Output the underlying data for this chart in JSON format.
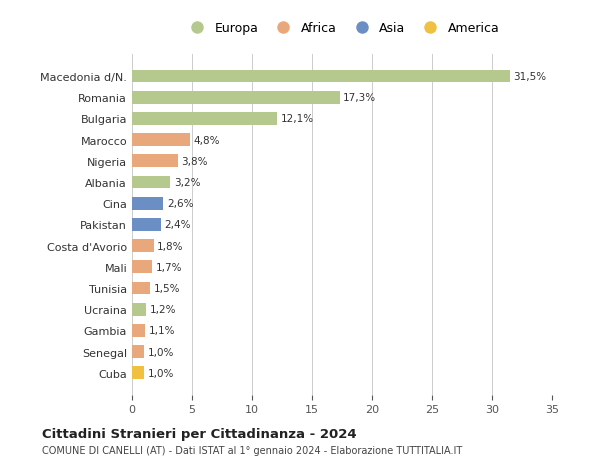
{
  "countries": [
    "Macedonia d/N.",
    "Romania",
    "Bulgaria",
    "Marocco",
    "Nigeria",
    "Albania",
    "Cina",
    "Pakistan",
    "Costa d'Avorio",
    "Mali",
    "Tunisia",
    "Ucraina",
    "Gambia",
    "Senegal",
    "Cuba"
  ],
  "values": [
    31.5,
    17.3,
    12.1,
    4.8,
    3.8,
    3.2,
    2.6,
    2.4,
    1.8,
    1.7,
    1.5,
    1.2,
    1.1,
    1.0,
    1.0
  ],
  "labels": [
    "31,5%",
    "17,3%",
    "12,1%",
    "4,8%",
    "3,8%",
    "3,2%",
    "2,6%",
    "2,4%",
    "1,8%",
    "1,7%",
    "1,5%",
    "1,2%",
    "1,1%",
    "1,0%",
    "1,0%"
  ],
  "colors": [
    "#b5c98e",
    "#b5c98e",
    "#b5c98e",
    "#e8a87c",
    "#e8a87c",
    "#b5c98e",
    "#6b8fc4",
    "#6b8fc4",
    "#e8a87c",
    "#e8a87c",
    "#e8a87c",
    "#b5c98e",
    "#e8a87c",
    "#e8a87c",
    "#f0c040"
  ],
  "legend_labels": [
    "Europa",
    "Africa",
    "Asia",
    "America"
  ],
  "legend_colors": [
    "#b5c98e",
    "#e8a87c",
    "#6b8fc4",
    "#f0c040"
  ],
  "title": "Cittadini Stranieri per Cittadinanza - 2024",
  "subtitle": "COMUNE DI CANELLI (AT) - Dati ISTAT al 1° gennaio 2024 - Elaborazione TUTTITALIA.IT",
  "xlim": [
    0,
    35
  ],
  "xticks": [
    0,
    5,
    10,
    15,
    20,
    25,
    30,
    35
  ],
  "background_color": "#ffffff",
  "grid_color": "#cccccc",
  "bar_height": 0.6
}
